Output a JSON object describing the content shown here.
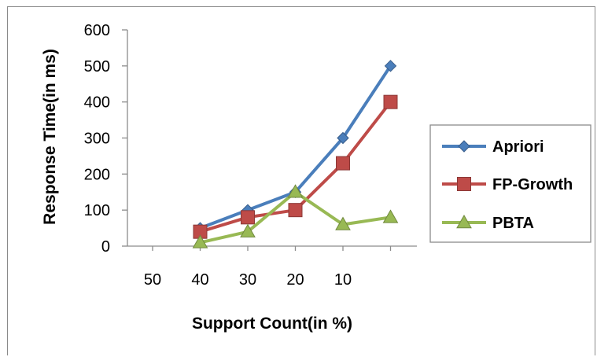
{
  "chart_data": {
    "type": "line",
    "title": "",
    "xlabel": "Support Count(in %)",
    "ylabel": "Response Time(in ms)",
    "categories": [
      "50",
      "40",
      "30",
      "20",
      "10",
      ""
    ],
    "ylim": [
      0,
      600
    ],
    "yticks": [
      0,
      100,
      200,
      300,
      400,
      500,
      600
    ],
    "grid": false,
    "legend_position": "right",
    "series": [
      {
        "name": "Apriori",
        "color": "#4a7ebb",
        "marker": "diamond",
        "values": [
          null,
          50,
          100,
          150,
          300,
          500
        ]
      },
      {
        "name": "FP-Growth",
        "color": "#be4b48",
        "marker": "square",
        "values": [
          null,
          40,
          80,
          100,
          230,
          400
        ]
      },
      {
        "name": "PBTA",
        "color": "#98b954",
        "marker": "triangle",
        "values": [
          null,
          10,
          40,
          150,
          60,
          80
        ]
      }
    ]
  }
}
